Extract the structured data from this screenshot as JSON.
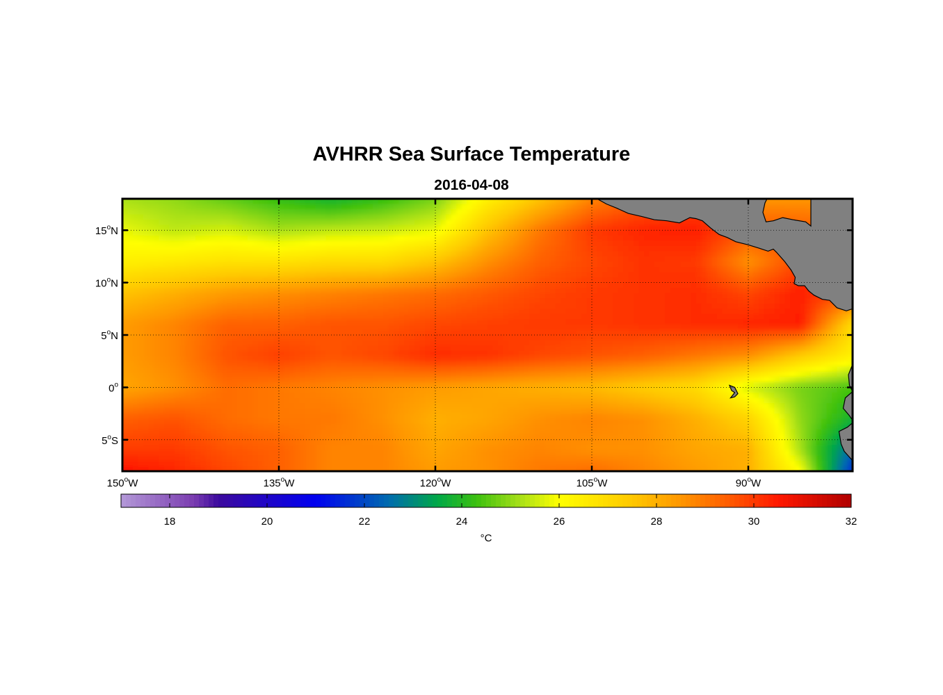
{
  "title": "AVHRR Sea Surface Temperature",
  "subtitle": "2016-04-08",
  "chart_data": {
    "type": "heatmap",
    "title": "AVHRR Sea Surface Temperature",
    "subtitle": "2016-04-08",
    "xlabel": "",
    "ylabel": "",
    "units": "°C",
    "xlim": [
      -150,
      -80
    ],
    "ylim": [
      -8,
      18
    ],
    "grid": "dotted",
    "colormap_range": [
      17,
      32
    ],
    "colorbar_ticks": [
      18,
      20,
      22,
      24,
      26,
      28,
      30,
      32
    ],
    "lon_ticks": [
      {
        "value": -150,
        "num": "150",
        "hemi": "W"
      },
      {
        "value": -135,
        "num": "135",
        "hemi": "W"
      },
      {
        "value": -120,
        "num": "120",
        "hemi": "W"
      },
      {
        "value": -105,
        "num": "105",
        "hemi": "W"
      },
      {
        "value": -90,
        "num": "90",
        "hemi": "W"
      }
    ],
    "lat_ticks": [
      {
        "value": 15,
        "num": "15",
        "hemi": "N"
      },
      {
        "value": 10,
        "num": "10",
        "hemi": "N"
      },
      {
        "value": 5,
        "num": "5",
        "hemi": "N"
      },
      {
        "value": 0,
        "num": "0",
        "hemi": ""
      },
      {
        "value": -5,
        "num": "5",
        "hemi": "S"
      }
    ],
    "land_color": "#808080",
    "colormap_stops": [
      {
        "value": 17,
        "color": "#b499d8"
      },
      {
        "value": 18.5,
        "color": "#7a3cb0"
      },
      {
        "value": 19,
        "color": "#3c0a9e"
      },
      {
        "value": 21,
        "color": "#0000f0"
      },
      {
        "value": 22.5,
        "color": "#006cae"
      },
      {
        "value": 23.5,
        "color": "#00a848"
      },
      {
        "value": 24.3,
        "color": "#3cc010"
      },
      {
        "value": 25.2,
        "color": "#a8e018"
      },
      {
        "value": 26.0,
        "color": "#ffff00"
      },
      {
        "value": 27.5,
        "color": "#ffc800"
      },
      {
        "value": 28.5,
        "color": "#ff9600"
      },
      {
        "value": 29.5,
        "color": "#ff5a00"
      },
      {
        "value": 30.5,
        "color": "#ff1800"
      },
      {
        "value": 32,
        "color": "#b00000"
      }
    ],
    "sst_grid": {
      "lon": [
        -150,
        -145,
        -140,
        -135,
        -130,
        -125,
        -120,
        -115,
        -110,
        -105,
        -100,
        -95,
        -90,
        -85,
        -80
      ],
      "lat": [
        18,
        15,
        12,
        9,
        6,
        3,
        0,
        -3,
        -6,
        -8
      ],
      "values": [
        [
          25.2,
          25.0,
          24.6,
          24.2,
          23.8,
          24.2,
          24.8,
          26.4,
          27.6,
          28.8,
          29.5,
          29.8,
          28.5,
          28.5,
          28.5
        ],
        [
          25.8,
          25.4,
          25.6,
          25.2,
          25.4,
          25.5,
          25.8,
          27.6,
          29.0,
          30.0,
          30.3,
          30.4,
          29.6,
          29.5,
          29.2
        ],
        [
          26.4,
          26.6,
          26.8,
          26.8,
          27.0,
          27.0,
          27.6,
          28.6,
          29.4,
          29.8,
          30.1,
          30.0,
          28.6,
          29.8,
          29.4
        ],
        [
          27.6,
          28.0,
          28.4,
          28.6,
          28.8,
          29.0,
          29.2,
          29.5,
          29.8,
          30.0,
          30.1,
          30.2,
          29.8,
          30.4,
          29.6
        ],
        [
          28.4,
          28.8,
          29.4,
          29.4,
          29.6,
          29.6,
          29.8,
          29.9,
          30.0,
          30.0,
          30.1,
          30.2,
          30.3,
          30.4,
          27.0
        ],
        [
          28.4,
          28.8,
          29.6,
          29.9,
          29.6,
          29.8,
          30.2,
          30.1,
          29.8,
          29.6,
          29.4,
          29.0,
          28.6,
          27.4,
          26.4
        ],
        [
          28.2,
          28.6,
          29.2,
          29.0,
          28.8,
          28.6,
          28.4,
          28.2,
          28.0,
          27.8,
          27.4,
          27.0,
          25.6,
          24.8,
          24.4
        ],
        [
          29.4,
          29.6,
          29.2,
          29.0,
          29.0,
          28.6,
          28.0,
          28.2,
          28.6,
          28.8,
          28.6,
          28.0,
          27.2,
          25.0,
          23.8
        ],
        [
          30.0,
          30.0,
          29.6,
          29.4,
          28.8,
          28.8,
          28.2,
          28.6,
          28.8,
          28.6,
          28.6,
          28.2,
          28.0,
          25.2,
          22.4
        ],
        [
          30.6,
          30.3,
          29.8,
          29.4,
          28.8,
          28.8,
          28.4,
          28.6,
          29.0,
          29.2,
          28.8,
          28.4,
          28.0,
          26.0,
          21.6
        ]
      ]
    },
    "land": [
      {
        "name": "central-america",
        "points": [
          [
            -104.5,
            18
          ],
          [
            -103.6,
            17.5
          ],
          [
            -102.6,
            17.1
          ],
          [
            -101.5,
            16.6
          ],
          [
            -100.2,
            16.3
          ],
          [
            -99.0,
            16.0
          ],
          [
            -97.8,
            15.9
          ],
          [
            -96.6,
            15.7
          ],
          [
            -95.6,
            16.2
          ],
          [
            -95.0,
            16.1
          ],
          [
            -94.4,
            15.9
          ],
          [
            -93.6,
            15.2
          ],
          [
            -92.8,
            14.6
          ],
          [
            -92.0,
            14.3
          ],
          [
            -91.2,
            13.9
          ],
          [
            -90.0,
            13.6
          ],
          [
            -89.0,
            13.3
          ],
          [
            -88.1,
            13.0
          ],
          [
            -87.6,
            13.2
          ],
          [
            -87.3,
            12.9
          ],
          [
            -86.5,
            12.0
          ],
          [
            -85.9,
            11.2
          ],
          [
            -85.5,
            10.5
          ],
          [
            -85.6,
            9.9
          ],
          [
            -85.2,
            9.7
          ],
          [
            -84.6,
            9.7
          ],
          [
            -84.2,
            9.2
          ],
          [
            -83.7,
            8.8
          ],
          [
            -82.9,
            8.4
          ],
          [
            -82.2,
            8.3
          ],
          [
            -81.5,
            7.6
          ],
          [
            -80.6,
            7.3
          ],
          [
            -80.0,
            7.5
          ],
          [
            -80,
            18
          ],
          [
            -84.0,
            18
          ],
          [
            -84.0,
            15.4
          ],
          [
            -84.5,
            15.8
          ],
          [
            -85.7,
            16.0
          ],
          [
            -86.7,
            16.2
          ],
          [
            -87.6,
            15.9
          ],
          [
            -88.3,
            15.8
          ],
          [
            -88.6,
            16.7
          ],
          [
            -88.4,
            17.6
          ],
          [
            -88.2,
            18
          ]
        ]
      },
      {
        "name": "south-america",
        "points": [
          [
            -80,
            -8
          ],
          [
            -80,
            2.2
          ],
          [
            -80.4,
            1.2
          ],
          [
            -80.3,
            0.2
          ],
          [
            -80.0,
            -0.4
          ],
          [
            -80.7,
            -1.0
          ],
          [
            -80.9,
            -2.0
          ],
          [
            -80.3,
            -2.7
          ],
          [
            -79.9,
            -3.3
          ],
          [
            -80.5,
            -3.8
          ],
          [
            -81.3,
            -4.2
          ],
          [
            -81.1,
            -5.4
          ],
          [
            -80.8,
            -6.1
          ],
          [
            -79.9,
            -7.1
          ],
          [
            -79.5,
            -8
          ]
        ]
      },
      {
        "name": "galapagos",
        "points": [
          [
            -91.8,
            0.2
          ],
          [
            -91.3,
            0.0
          ],
          [
            -91.0,
            -0.6
          ],
          [
            -91.3,
            -0.9
          ],
          [
            -91.7,
            -1.0
          ],
          [
            -91.3,
            -0.5
          ],
          [
            -91.6,
            -0.3
          ]
        ]
      }
    ]
  }
}
